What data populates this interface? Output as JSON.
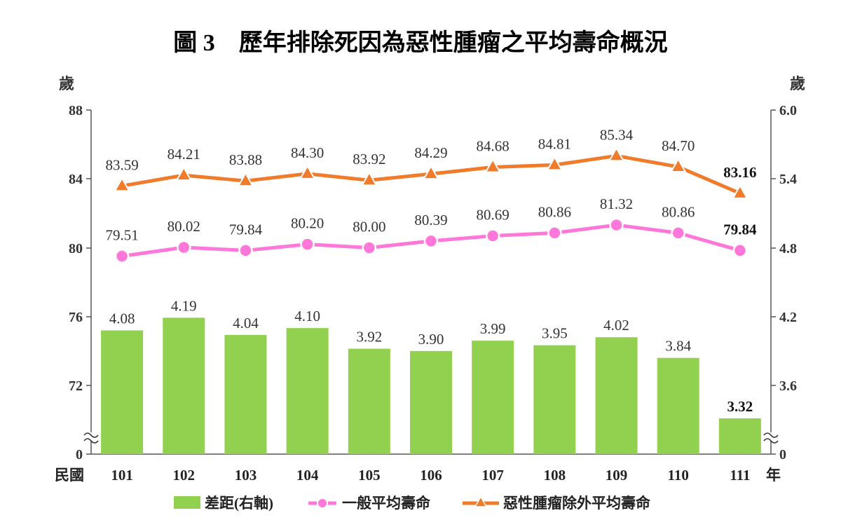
{
  "chart_data": {
    "type": "bar+line",
    "title": "圖 3　歷年排除死因為惡性腫瘤之平均壽命概況",
    "left_unit": "歲",
    "right_unit": "歲",
    "x_prefix": "民國",
    "x_suffix": "年",
    "categories": [
      "101",
      "102",
      "103",
      "104",
      "105",
      "106",
      "107",
      "108",
      "109",
      "110",
      "111"
    ],
    "left_axis": {
      "ticks": [
        "88",
        "84",
        "80",
        "76",
        "72",
        "0"
      ],
      "range": [
        72,
        88
      ],
      "broken": true
    },
    "right_axis": {
      "ticks": [
        "6.0",
        "5.4",
        "4.8",
        "4.2",
        "3.6",
        "0"
      ],
      "range": [
        3.6,
        6.0
      ],
      "broken": true
    },
    "series": [
      {
        "name": "差距(右軸)",
        "type": "bar",
        "axis": "right",
        "color": "#92d050",
        "values": [
          4.08,
          4.19,
          4.04,
          4.1,
          3.92,
          3.9,
          3.99,
          3.95,
          4.02,
          3.84,
          3.32
        ],
        "labels": [
          "4.08",
          "4.19",
          "4.04",
          "4.10",
          "3.92",
          "3.90",
          "3.99",
          "3.95",
          "4.02",
          "3.84",
          "3.32"
        ]
      },
      {
        "name": "一般平均壽命",
        "type": "line",
        "axis": "left",
        "color": "#ff77d8",
        "values": [
          79.51,
          80.02,
          79.84,
          80.2,
          80.0,
          80.39,
          80.69,
          80.86,
          81.32,
          80.86,
          79.84
        ],
        "labels": [
          "79.51",
          "80.02",
          "79.84",
          "80.20",
          "80.00",
          "80.39",
          "80.69",
          "80.86",
          "81.32",
          "80.86",
          "79.84"
        ]
      },
      {
        "name": "惡性腫瘤除外平均壽命",
        "type": "line",
        "axis": "left",
        "color": "#f07b2a",
        "values": [
          83.59,
          84.21,
          83.88,
          84.3,
          83.92,
          84.29,
          84.68,
          84.81,
          85.34,
          84.7,
          83.16
        ],
        "labels": [
          "83.59",
          "84.21",
          "83.88",
          "84.30",
          "83.92",
          "84.29",
          "84.68",
          "84.81",
          "85.34",
          "84.70",
          "83.16"
        ]
      }
    ],
    "legend_position": "bottom"
  }
}
